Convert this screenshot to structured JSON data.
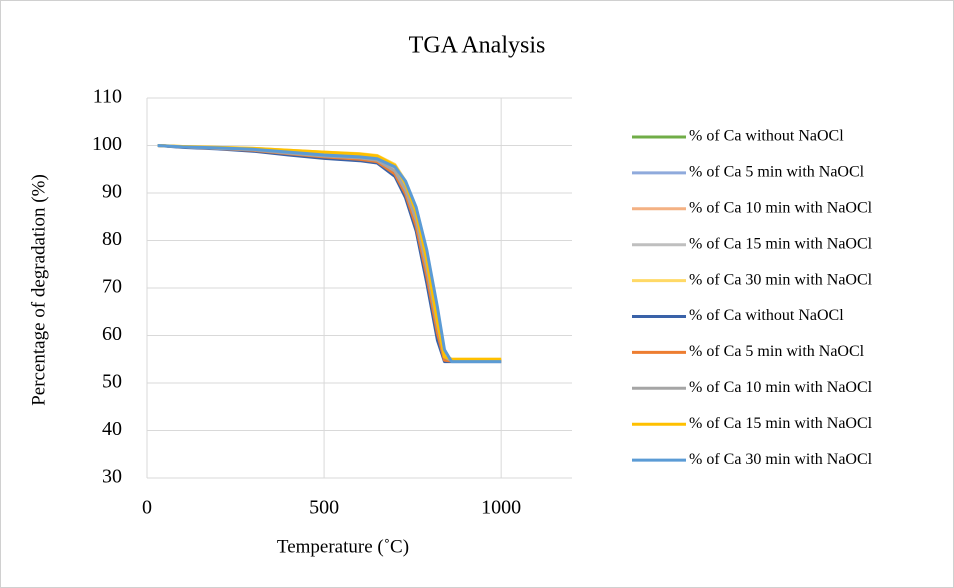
{
  "chart_data": {
    "type": "line",
    "title": "TGA Analysis",
    "x_label": "Temperature (˚C)",
    "y_label": "Percentage of degradation (%)",
    "x": [
      30,
      100,
      200,
      300,
      400,
      500,
      600,
      650,
      700,
      730,
      760,
      790,
      820,
      840,
      860,
      900,
      1000
    ],
    "series": [
      {
        "name": "% of Ca without NaOCl",
        "color": "#70ad47",
        "values": [
          100,
          99.7,
          99.4,
          99.1,
          98.4,
          97.8,
          97.3,
          96.8,
          94.5,
          90.5,
          84,
          74,
          62,
          55.5,
          54.8,
          54.8,
          54.8
        ]
      },
      {
        "name": "% of Ca 5 min with NaOCl",
        "color": "#8faadc",
        "values": [
          100,
          99.7,
          99.4,
          99.0,
          98.3,
          97.7,
          97.2,
          96.7,
          94.3,
          90.2,
          83.5,
          73,
          61,
          55,
          54.6,
          54.6,
          54.6
        ]
      },
      {
        "name": "% of Ca 10 min with NaOCl",
        "color": "#f4b183",
        "values": [
          100,
          99.7,
          99.5,
          99.2,
          98.6,
          98.1,
          97.7,
          97.2,
          95,
          91,
          84.5,
          74.5,
          62.5,
          55.5,
          54.8,
          54.8,
          54.8
        ]
      },
      {
        "name": "% of Ca 15 min with NaOCl",
        "color": "#bfbfbf",
        "values": [
          100,
          99.7,
          99.4,
          99.1,
          98.5,
          97.9,
          97.5,
          97,
          94.8,
          91,
          85,
          75,
          63,
          56,
          54.7,
          54.7,
          54.7
        ]
      },
      {
        "name": "% of Ca 30 min with NaOCl",
        "color": "#ffd966",
        "values": [
          100,
          99.8,
          99.6,
          99.4,
          99,
          98.6,
          98.3,
          97.9,
          96,
          92.5,
          86.5,
          77,
          64.5,
          56,
          55,
          55,
          55
        ]
      },
      {
        "name": "% of Ca without NaOCl",
        "color": "#3a62a8",
        "values": [
          100,
          99.6,
          99.3,
          98.8,
          98,
          97.3,
          96.8,
          96.3,
          93.5,
          89,
          82,
          71,
          59,
          54.5,
          54.5,
          54.5,
          54.5
        ]
      },
      {
        "name": "% of Ca 5 min with NaOCl",
        "color": "#ed7d31",
        "values": [
          100,
          99.7,
          99.4,
          99.0,
          98.3,
          97.6,
          97.1,
          96.6,
          94,
          89.8,
          83,
          72.5,
          60.5,
          54.8,
          54.6,
          54.6,
          54.6
        ]
      },
      {
        "name": "% of Ca 10 min with NaOCl",
        "color": "#a5a5a5",
        "values": [
          100,
          99.7,
          99.4,
          99.1,
          98.4,
          97.8,
          97.4,
          96.9,
          94.6,
          90.6,
          84.3,
          74.2,
          62.2,
          55.5,
          54.7,
          54.7,
          54.7
        ]
      },
      {
        "name": "% of Ca 15 min with NaOCl",
        "color": "#ffc000",
        "values": [
          100,
          99.8,
          99.6,
          99.4,
          99,
          98.6,
          98.2,
          97.8,
          95.8,
          92,
          86,
          76,
          63,
          55.5,
          55,
          55,
          55
        ]
      },
      {
        "name": "% of Ca 30 min with NaOCl",
        "color": "#5b9bd5",
        "values": [
          100,
          99.7,
          99.5,
          99.2,
          98.6,
          98,
          97.6,
          97.2,
          95.5,
          92.5,
          87,
          78,
          66,
          57,
          54.5,
          54.5,
          54.5
        ]
      }
    ],
    "xlim": [
      0,
      1200
    ],
    "xticks": [
      0,
      500,
      1000
    ],
    "ylim": [
      30,
      110
    ],
    "yticks": [
      30,
      40,
      50,
      60,
      70,
      80,
      90,
      100,
      110
    ],
    "grid": true,
    "legend": "right"
  }
}
